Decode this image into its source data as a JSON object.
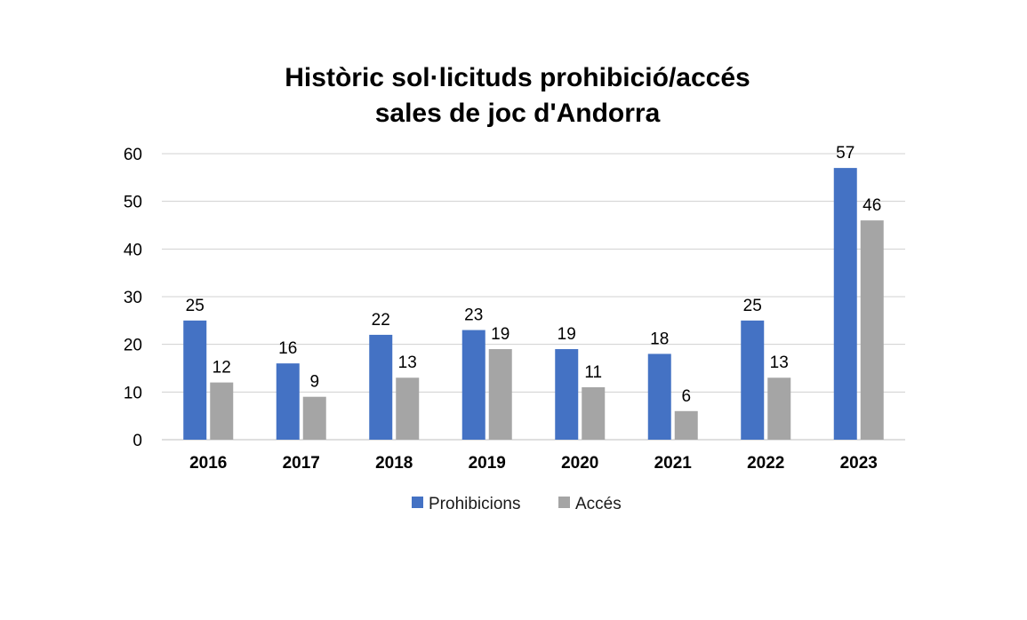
{
  "chart_data": {
    "type": "bar",
    "title_lines": [
      "Històric sol·licituds prohibició/accés",
      "sales de joc d'Andorra"
    ],
    "categories": [
      "2016",
      "2017",
      "2018",
      "2019",
      "2020",
      "2021",
      "2022",
      "2023"
    ],
    "series": [
      {
        "name": "Prohibicions",
        "color": "#4472C4",
        "values": [
          25,
          16,
          22,
          23,
          19,
          18,
          25,
          57
        ]
      },
      {
        "name": "Accés",
        "color": "#A5A5A5",
        "values": [
          12,
          9,
          13,
          19,
          11,
          6,
          13,
          46
        ]
      }
    ],
    "ylim": [
      0,
      60
    ],
    "yticks": [
      0,
      10,
      20,
      30,
      40,
      50,
      60
    ],
    "xlabel": "",
    "ylabel": "",
    "grid": true,
    "legend_position": "bottom"
  }
}
